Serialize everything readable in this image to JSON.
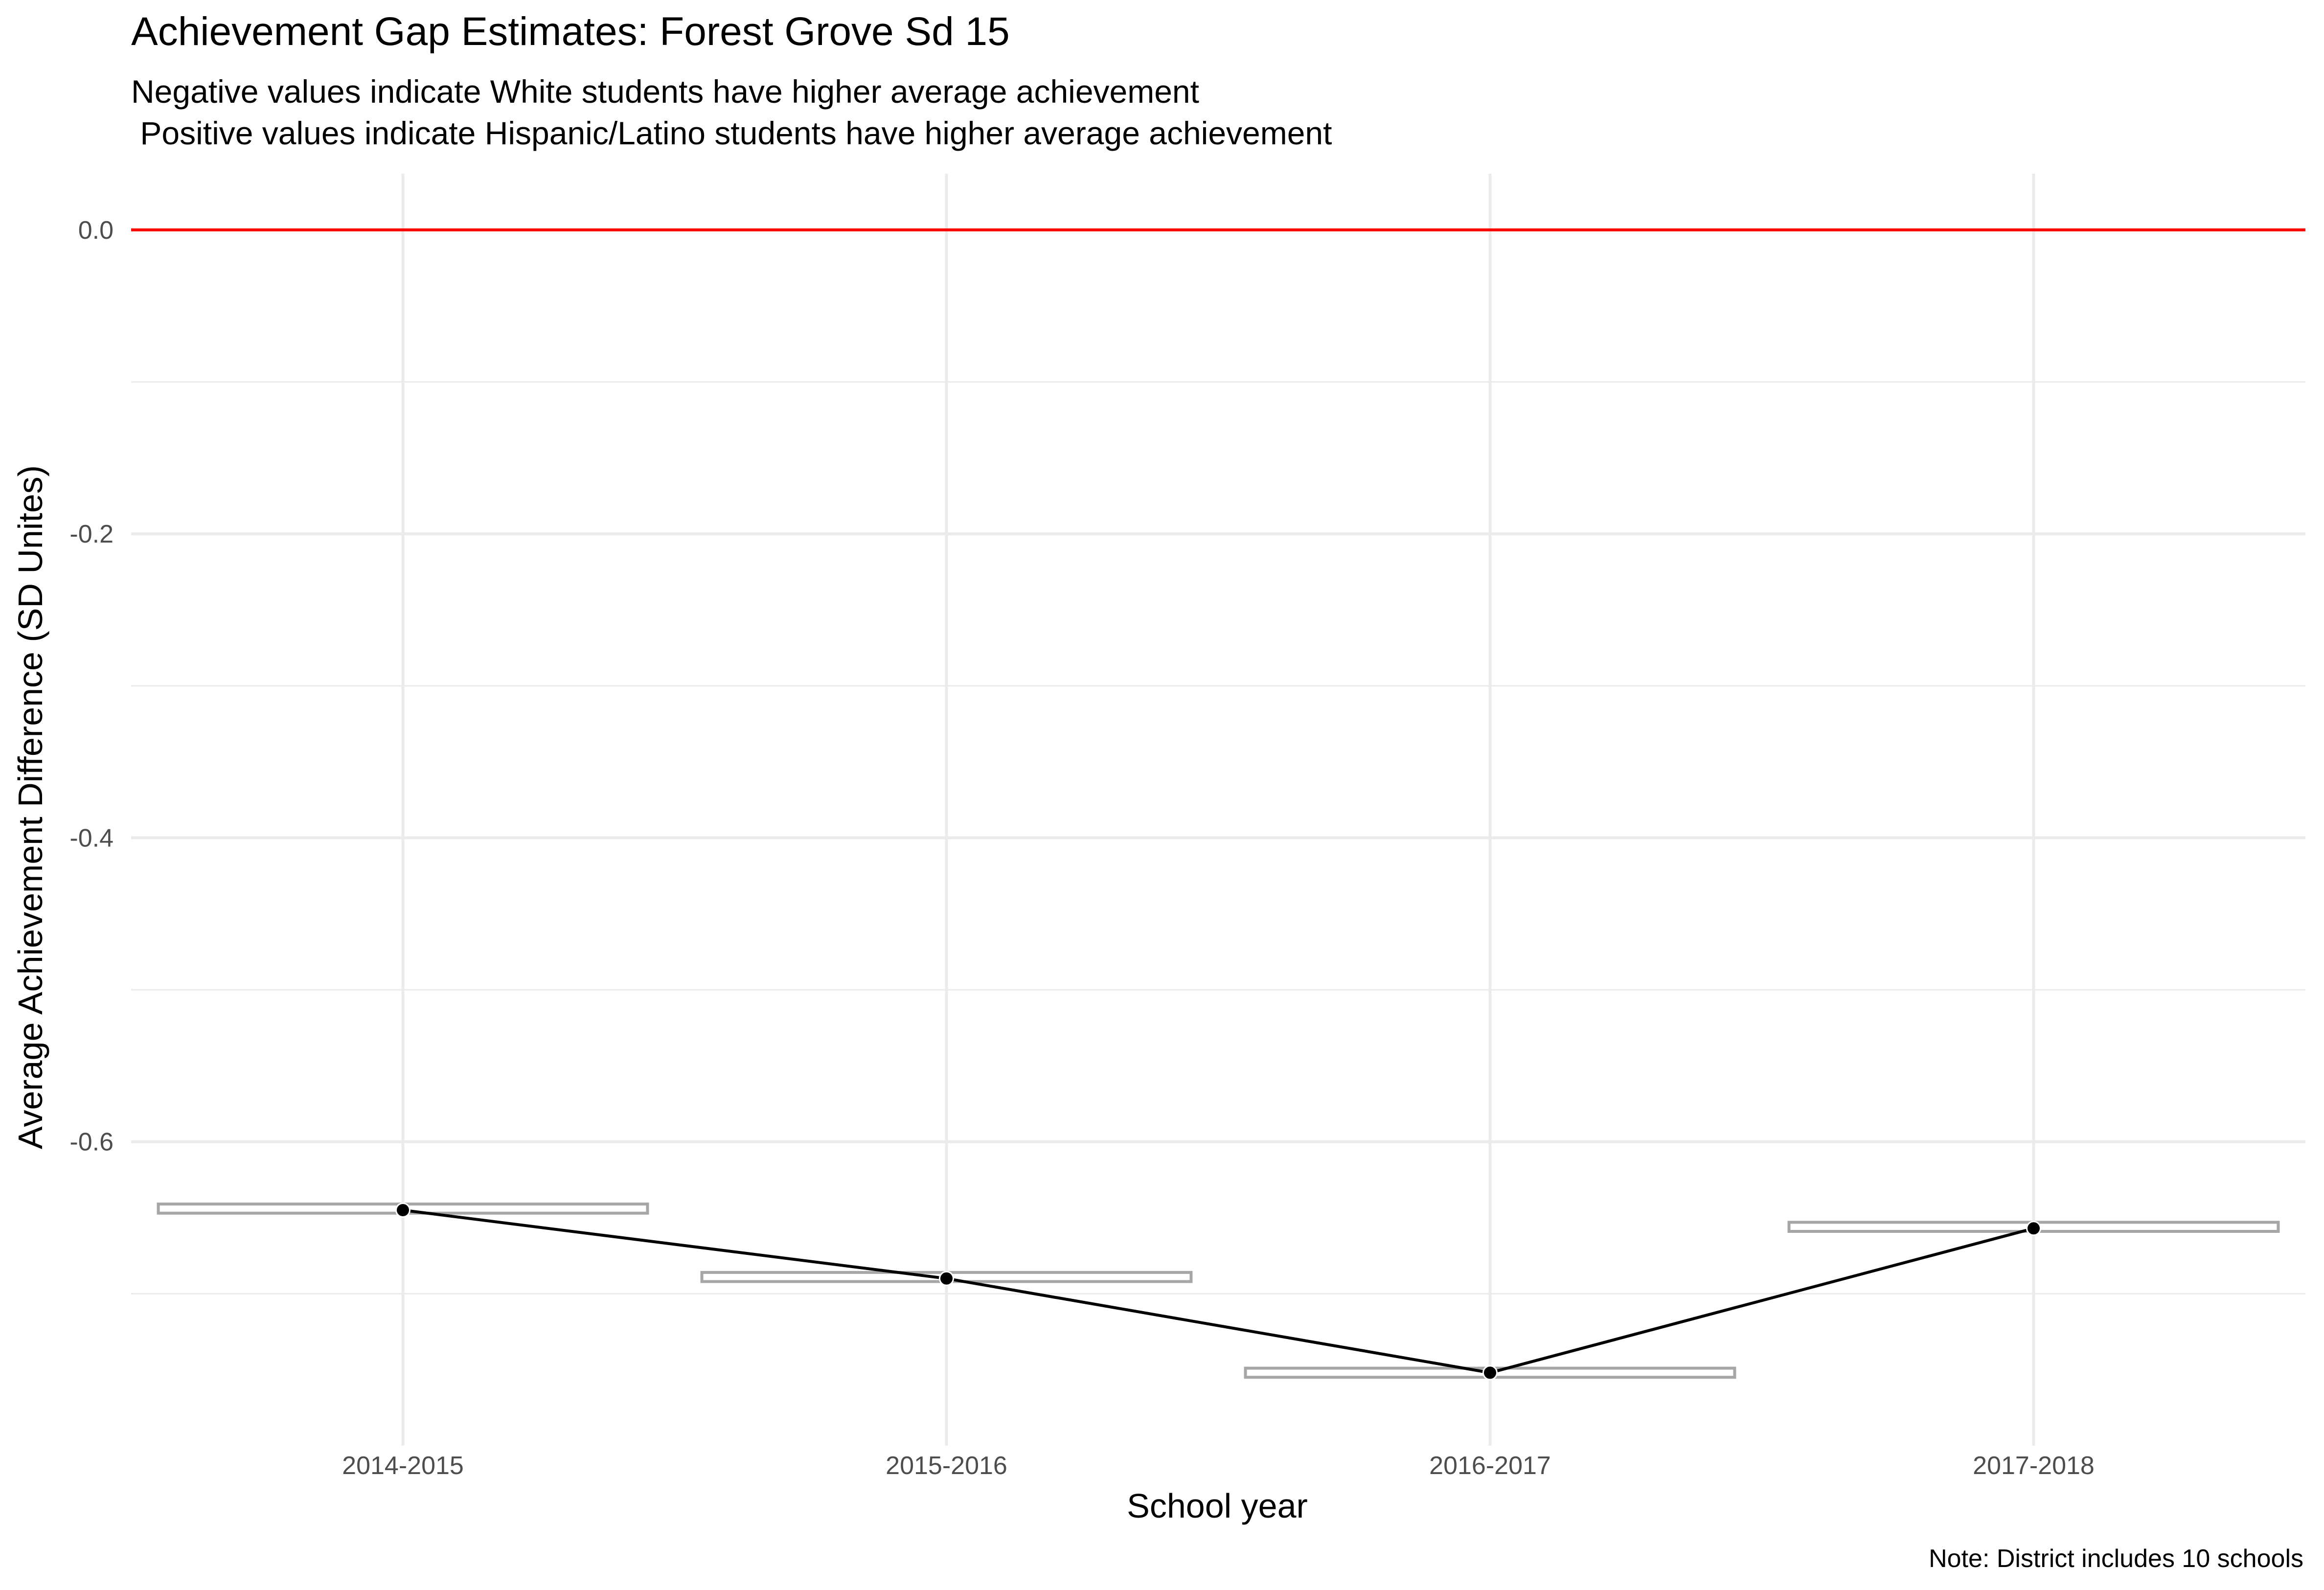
{
  "chart_data": {
    "type": "line",
    "title": "Achievement Gap Estimates: Forest Grove Sd 15",
    "subtitle_lines": [
      "Negative values indicate White students have higher average achievement",
      " Positive values indicate Hispanic/Latino students have higher average achievement"
    ],
    "xlabel": "School year",
    "ylabel": "Average Achievement Difference (SD Unites)",
    "caption": "Note: District includes 10 schools",
    "categories": [
      "2014-2015",
      "2015-2016",
      "2016-2017",
      "2017-2018"
    ],
    "series": [
      {
        "values": [
          -0.645,
          -0.69,
          -0.752,
          -0.657
        ]
      }
    ],
    "error_bands": [
      {
        "lower": -0.647,
        "upper": -0.641
      },
      {
        "lower": -0.692,
        "upper": -0.686
      },
      {
        "lower": -0.755,
        "upper": -0.749
      },
      {
        "lower": -0.659,
        "upper": -0.653
      }
    ],
    "reference_line": {
      "y": 0.0,
      "color": "#ff0000"
    },
    "ylim": [
      -0.8,
      0.037
    ],
    "y_ticks": [
      {
        "value": 0.0,
        "label": "0.0"
      },
      {
        "value": -0.2,
        "label": "-0.2"
      },
      {
        "value": -0.4,
        "label": "-0.4"
      },
      {
        "value": -0.6,
        "label": "-0.6"
      }
    ],
    "y_minor_ticks": [
      -0.1,
      -0.3,
      -0.5,
      -0.7
    ],
    "grid": true,
    "colors": {
      "line": "#000000",
      "point": "#000000",
      "error_band": "#a6a6a6",
      "grid": "#ebebeb",
      "reference": "#ff0000"
    }
  }
}
